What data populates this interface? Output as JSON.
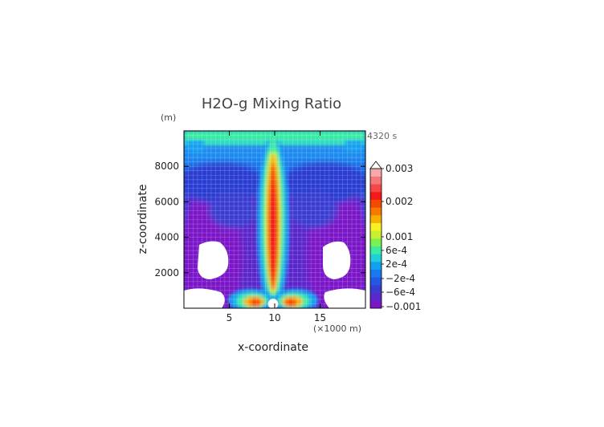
{
  "chart_data": {
    "type": "heatmap",
    "title": "H2O-g Mixing Ratio",
    "time_label": "4320 s",
    "xlabel": "x-coordinate",
    "x_unit": "(×1000 m)",
    "ylabel": "z-coordinate",
    "y_unit": "(m)",
    "xlim": [
      0,
      20
    ],
    "ylim": [
      0,
      10000
    ],
    "x_ticks": [
      5,
      10,
      15
    ],
    "y_ticks": [
      2000,
      4000,
      6000,
      8000
    ],
    "grid": true,
    "colorbar": {
      "placement": "right",
      "labels": [
        {
          "text": "0.003",
          "value": 0.003
        },
        {
          "text": "0.002",
          "value": 0.002
        },
        {
          "text": "0.001",
          "value": 0.001
        },
        {
          "text": "6e-4",
          "value": 0.0006
        },
        {
          "text": "2e-4",
          "value": 0.0002
        },
        {
          "text": "−2e-4",
          "value": -0.0002
        },
        {
          "text": "−6e-4",
          "value": -0.0006
        },
        {
          "text": "−0.001",
          "value": -0.001
        }
      ],
      "colors": [
        "#7a18c8",
        "#5a28cc",
        "#3a3cd2",
        "#2358e4",
        "#1a78ee",
        "#13a0f0",
        "#1ed0d8",
        "#3aeca0",
        "#7cf050",
        "#c8f030",
        "#f8f020",
        "#f8b000",
        "#f87800",
        "#f44a00",
        "#f41818",
        "#f44848",
        "#f47878",
        "#f8a8a8"
      ],
      "min": -0.001,
      "max": 0.003
    }
  }
}
